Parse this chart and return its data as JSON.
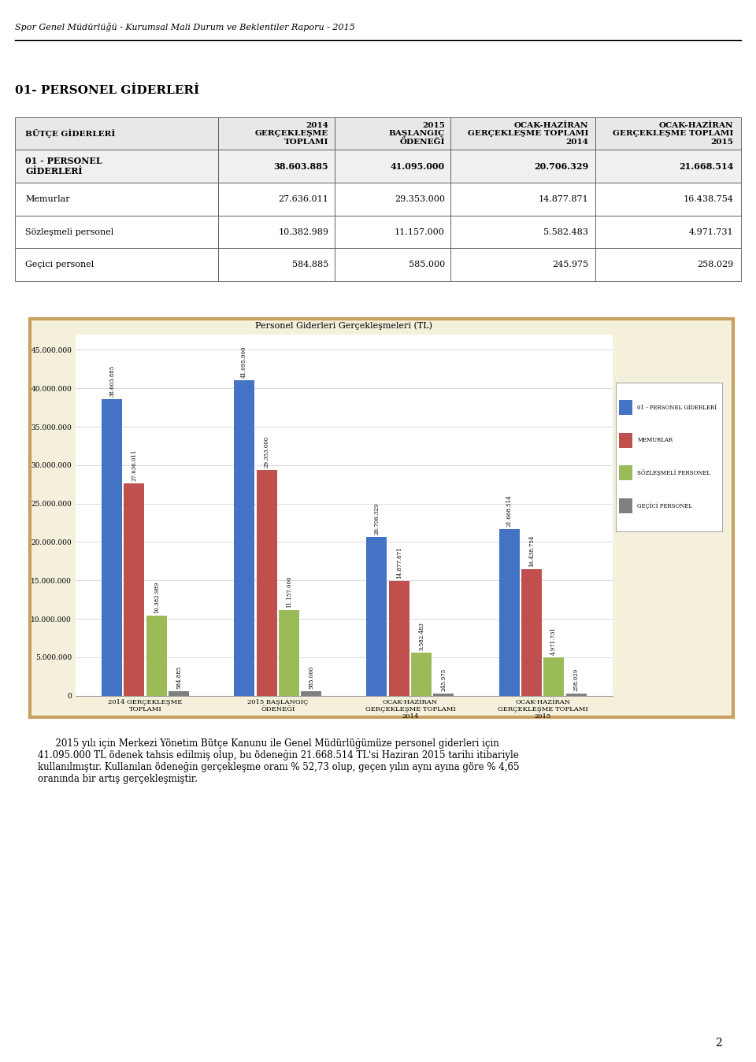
{
  "title": "Personel Giderleri Gerçekleşmeleri (TL)",
  "header_line": "Spor Genel Müdürlüğü - Kurumsal Mali Durum ve Beklentiler Raporu - 2015",
  "section_title": "01- PERSONEL GİDERLERİ",
  "table_col_headers": [
    "BÜTÇE GİDERLERİ",
    "2014\nGERÇEKLEŞME\nTOPLAMI",
    "2015\nBAŞLANGIÇ\nÖDENEĞİ",
    "OCAK-HAZİRAN\nGERÇEKLEŞME TOPLAMI\n2014",
    "OCAK-HAZİRAN\nGERÇEKLEŞME TOPLAMI\n2015"
  ],
  "table_data": [
    [
      "01 - PERSONEL\nGİDERLERİ",
      "38.603.885",
      "41.095.000",
      "20.706.329",
      "21.668.514"
    ],
    [
      "Memurlar",
      "27.636.011",
      "29.353.000",
      "14.877.871",
      "16.438.754"
    ],
    [
      "Sözleşmeli personel",
      "10.382.989",
      "11.157.000",
      "5.582.483",
      "4.971.731"
    ],
    [
      "Geçici personel",
      "584.885",
      "585.000",
      "245.975",
      "258.029"
    ]
  ],
  "x_labels": [
    "2014 GERÇEKLEŞME\nTOPLAMI",
    "2015 BAŞLANGIÇ\nÖDENEĞİ",
    "OCAK-HAZİRAN\nGERÇEKLEŞME TOPLAMI\n2014",
    "OCAK-HAZİRAN\nGERÇEKLEŞME TOPLAMI\n2015"
  ],
  "series_names": [
    "01 - PERSONEL GİDERLERİ",
    "MEMURLAR",
    "SÖZLEŞMELİ PERSONEL",
    "GEÇİCİ PERSONEL"
  ],
  "series_colors": [
    "#4472C4",
    "#C0504D",
    "#9BBB59",
    "#7F7F7F"
  ],
  "series_values": [
    [
      38603885,
      41095000,
      20706329,
      21668514
    ],
    [
      27636011,
      29353000,
      14877871,
      16438754
    ],
    [
      10382989,
      11157000,
      5582483,
      4971731
    ],
    [
      584885,
      585000,
      245975,
      258029
    ]
  ],
  "value_labels": [
    [
      "38.603.885",
      "41.095.000",
      "20.706.329",
      "21.668.514"
    ],
    [
      "27.636.011",
      "29.353.000",
      "14.877.871",
      "16.438.754"
    ],
    [
      "10.382.989",
      "11.157.000",
      "5.582.483",
      "4.971.731"
    ],
    [
      "584.885",
      "585.000",
      "245.975",
      "258.029"
    ]
  ],
  "ylim": [
    0,
    47000000
  ],
  "yticks": [
    0,
    5000000,
    10000000,
    15000000,
    20000000,
    25000000,
    30000000,
    35000000,
    40000000,
    45000000
  ],
  "ytick_labels": [
    "0",
    "5.000.000",
    "10.000.000",
    "15.000.000",
    "20.000.000",
    "25.000.000",
    "30.000.000",
    "35.000.000",
    "40.000.000",
    "45.000.000"
  ],
  "chart_bg": "#F5F0DC",
  "plot_bg": "#FFFFFF",
  "border_color": "#C8A060",
  "bottom_text": "2015 yılı için Merkezi Yönetim Bütçe Kanunu ile Genel Müdürlüğümüze personel giderleri için 41.095.000 TL ödenek tahsis edilmiş olup, bu ödeneğin 21.668.514 TL'si Haziran 2015 tarihi itibariyle kullanılmıştır. Kullanılan ödeneğin gerçekleşme oranı % 52,73 olup, geçen yılın aynı ayına göre % 4,65 oranında bir artış gerçekleşmiştir.",
  "page_number": "2"
}
